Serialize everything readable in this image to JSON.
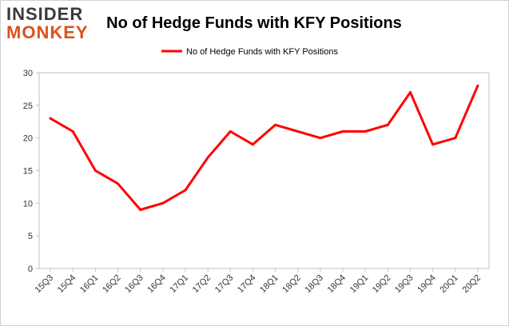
{
  "logo": {
    "line1": "INSIDER",
    "line2": "MONKEY"
  },
  "chart_data": {
    "type": "line",
    "title": "No of Hedge Funds with KFY Positions",
    "xlabel": "",
    "ylabel": "",
    "ylim": [
      0,
      30
    ],
    "yticks": [
      0,
      5,
      10,
      15,
      20,
      25,
      30
    ],
    "grid": false,
    "legend_position": "top-center",
    "categories": [
      "15Q3",
      "15Q4",
      "16Q1",
      "16Q2",
      "16Q3",
      "16Q4",
      "17Q1",
      "17Q2",
      "17Q3",
      "17Q4",
      "18Q1",
      "18Q2",
      "18Q3",
      "18Q4",
      "19Q1",
      "19Q2",
      "19Q3",
      "19Q4",
      "20Q1",
      "20Q2"
    ],
    "series": [
      {
        "name": "No of Hedge Funds with KFY Positions",
        "color": "#ff0000",
        "values": [
          23,
          21,
          15,
          13,
          9,
          10,
          12,
          17,
          21,
          19,
          22,
          21,
          20,
          21,
          21,
          22,
          27,
          19,
          20,
          28
        ]
      }
    ]
  }
}
